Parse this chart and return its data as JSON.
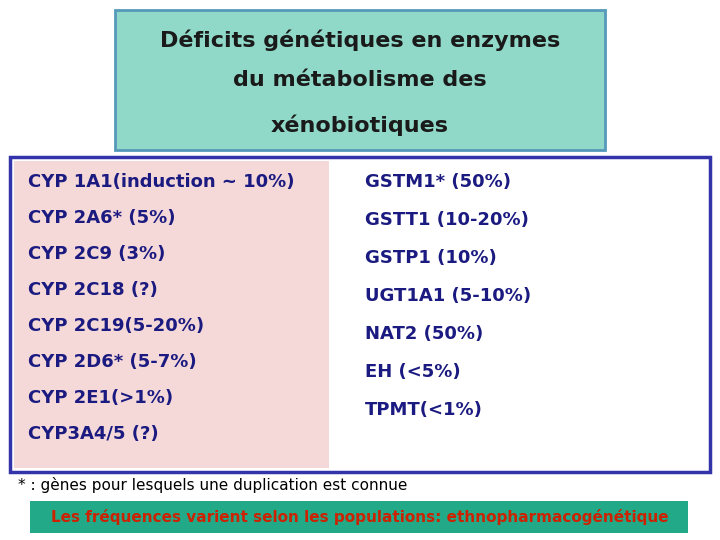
{
  "title_lines": [
    "Déficits génétiques en enzymes",
    "du métabolisme des",
    "xénobiotiques"
  ],
  "left_items": [
    "CYP 1A1(induction ~ 10%)",
    "CYP 2A6* (5%)",
    "CYP 2C9 (3%)",
    "CYP 2C18 (?)",
    "CYP 2C19(5-20%)",
    "CYP 2D6* (5-7%)",
    "CYP 2E1(>1%)",
    "CYP3A4/5 (?)"
  ],
  "right_items": [
    "GSTM1* (50%)",
    "GSTT1 (10-20%)",
    "GSTP1 (10%)",
    "UGT1A1 (5-10%)",
    "NAT2 (50%)",
    "EH (<5%)",
    "TPMT(<1%)"
  ],
  "title_bg_color": "#90d9c8",
  "title_border_color": "#5599bb",
  "left_bg_color": "#f5d8d8",
  "main_box_border_color": "#3333aa",
  "main_box_bg_color": "#ffffff",
  "footnote": "* : gènes pour lesquels une duplication est connue",
  "bottom_text": "Les fréquences varient selon les populations: ethnopharmacogénétique",
  "bottom_bg_color": "#22aa88",
  "bottom_text_color": "#cc2200",
  "text_color": "#1a1a80",
  "title_text_color": "#1a1a1a",
  "bg_color": "#ffffff"
}
